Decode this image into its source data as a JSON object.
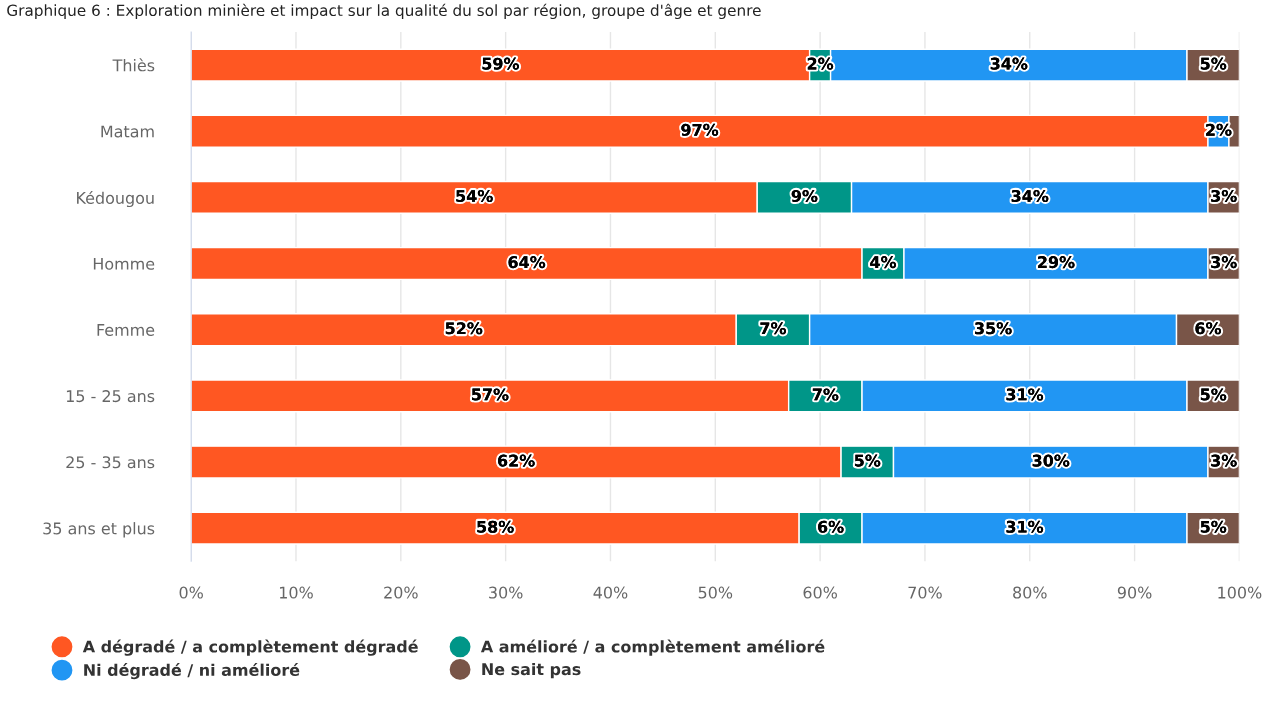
{
  "chart_data": {
    "type": "bar",
    "orientation": "horizontal",
    "stacked": true,
    "title": "Graphique 6 : Exploration minière et impact sur la qualité du sol par région, groupe d'âge et genre",
    "categories": [
      "Thiès",
      "Matam",
      "Kédougou",
      "Homme",
      "Femme",
      "15 - 25 ans",
      "25 - 35 ans",
      "35 ans et plus"
    ],
    "series": [
      {
        "name": "A dégradé / a complètement dégradé",
        "color": "#ff5722",
        "values": [
          59,
          97,
          54,
          64,
          52,
          57,
          62,
          58
        ],
        "value_labels": [
          "59%",
          "97%",
          "54%",
          "64%",
          "52%",
          "57%",
          "62%",
          "58%"
        ]
      },
      {
        "name": "A amélioré / a complètement amélioré",
        "color": "#009688",
        "values": [
          2,
          null,
          9,
          4,
          7,
          7,
          5,
          6
        ],
        "value_labels": [
          "2%",
          null,
          "9%",
          "4%",
          "7%",
          "7%",
          "5%",
          "6%"
        ]
      },
      {
        "name": "Ni dégradé / ni amélioré",
        "color": "#2196f3",
        "values": [
          34,
          2,
          34,
          29,
          35,
          31,
          30,
          31
        ],
        "value_labels": [
          "34%",
          "2%",
          "34%",
          "29%",
          "35%",
          "31%",
          "30%",
          "31%"
        ]
      },
      {
        "name": "Ne sait pas",
        "color": "#795548",
        "values": [
          5,
          1,
          3,
          3,
          6,
          5,
          3,
          5
        ],
        "value_labels": [
          "5%",
          null,
          "3%",
          "3%",
          "6%",
          "5%",
          "3%",
          "5%"
        ]
      }
    ],
    "xlim": [
      0,
      100
    ],
    "xticks": [
      {
        "value": 0,
        "label": "0%"
      },
      {
        "value": 10,
        "label": "10%"
      },
      {
        "value": 20,
        "label": "20%"
      },
      {
        "value": 30,
        "label": "30%"
      },
      {
        "value": 40,
        "label": "40%"
      },
      {
        "value": 50,
        "label": "50%"
      },
      {
        "value": 60,
        "label": "60%"
      },
      {
        "value": 70,
        "label": "70%"
      },
      {
        "value": 80,
        "label": "80%"
      },
      {
        "value": 90,
        "label": "90%"
      },
      {
        "value": 100,
        "label": "100%"
      }
    ],
    "grid": "x",
    "legend": "bottom"
  }
}
